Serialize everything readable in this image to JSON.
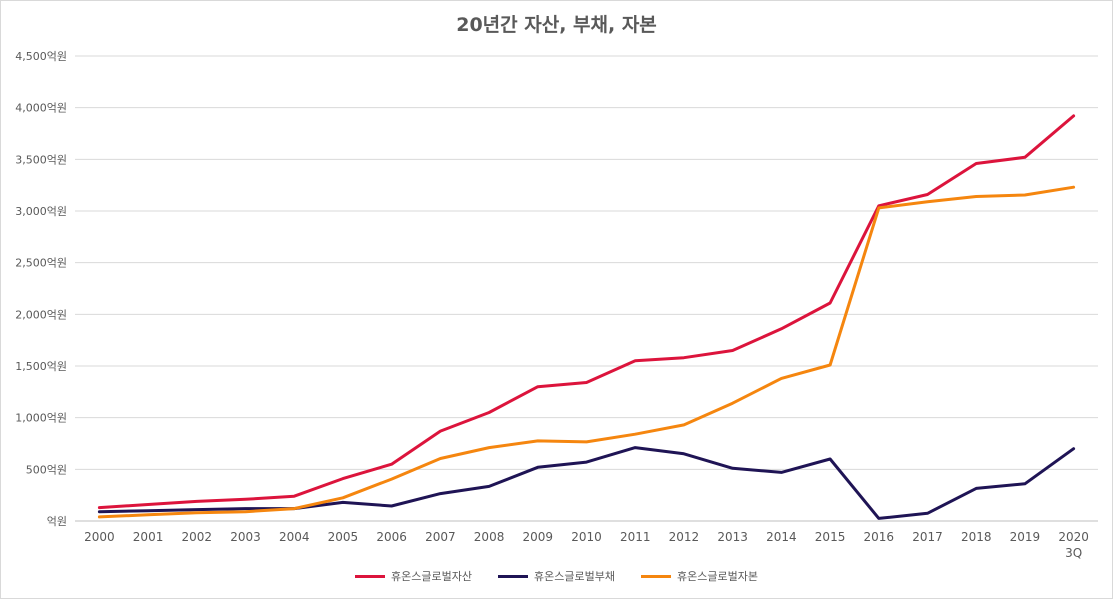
{
  "chart_data": {
    "type": "line",
    "title": "20년간 자산, 부채, 자본",
    "categories": [
      "2000",
      "2001",
      "2002",
      "2003",
      "2004",
      "2005",
      "2006",
      "2007",
      "2008",
      "2009",
      "2010",
      "2011",
      "2012",
      "2013",
      "2014",
      "2015",
      "2016",
      "2017",
      "2018",
      "2019",
      "2020\n3Q"
    ],
    "y_ticks": [
      "억원",
      "500억원",
      "1,000억원",
      "1,500억원",
      "2,000억원",
      "2,500억원",
      "3,000억원",
      "3,500억원",
      "4,000억원",
      "4,500억원"
    ],
    "ylim": [
      0,
      4500
    ],
    "grid": true,
    "legend_position": "bottom",
    "series": [
      {
        "name": "휴온스글로벌자산",
        "color": "#dc143c",
        "values": [
          130,
          160,
          190,
          210,
          240,
          410,
          550,
          870,
          1050,
          1300,
          1340,
          1550,
          1580,
          1650,
          1860,
          2110,
          3050,
          3160,
          3460,
          3520,
          3920
        ]
      },
      {
        "name": "휴온스글로벌부채",
        "color": "#1f1455",
        "values": [
          90,
          100,
          110,
          120,
          120,
          180,
          145,
          265,
          335,
          520,
          570,
          710,
          650,
          510,
          470,
          600,
          25,
          75,
          315,
          360,
          700
        ]
      },
      {
        "name": "휴온스글로벌자본",
        "color": "#f5860f",
        "values": [
          40,
          60,
          80,
          90,
          120,
          225,
          405,
          605,
          710,
          775,
          765,
          840,
          930,
          1140,
          1380,
          1510,
          3030,
          3090,
          3140,
          3155,
          3230
        ]
      }
    ]
  }
}
